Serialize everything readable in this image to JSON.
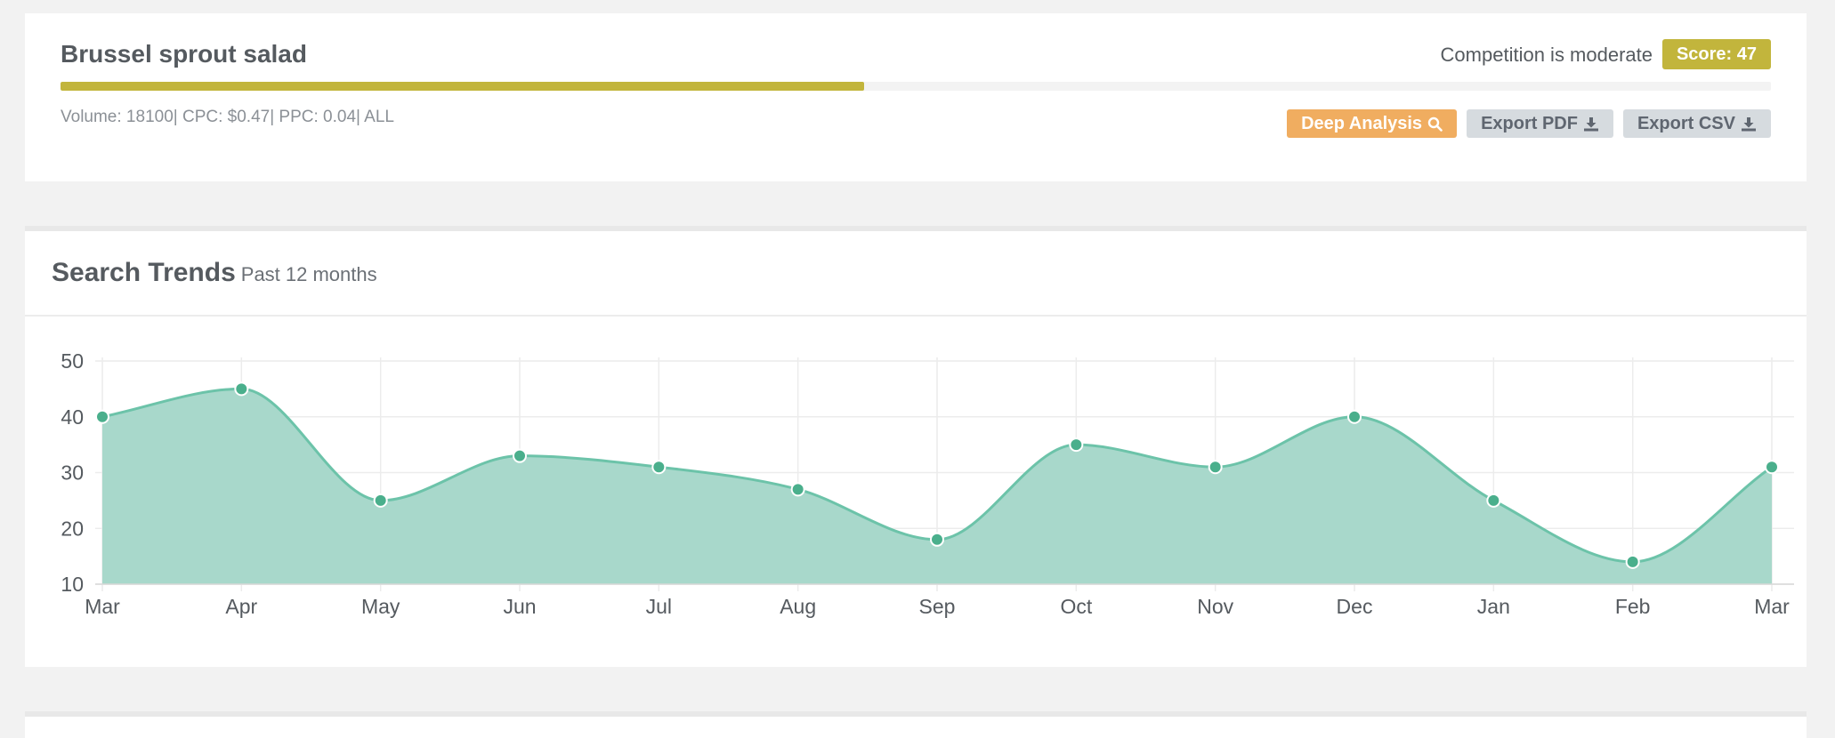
{
  "keyword": {
    "title": "Brussel sprout salad",
    "competition_text": "Competition is moderate",
    "score_label": "Score: 47",
    "score": 47,
    "score_color": "#c2b53c",
    "metrics_text": "Volume: 18100| CPC: $0.47| PPC: 0.04| ALL"
  },
  "actions": {
    "deep_analysis": "Deep Analysis",
    "deep_analysis_icon": "search-icon",
    "export_pdf": "Export PDF",
    "export_csv": "Export CSV",
    "download_icon": "download-icon",
    "deep_analysis_color": "#f0ad60"
  },
  "trends": {
    "title": "Search Trends",
    "subtitle": "Past 12 months"
  },
  "chart_data": {
    "type": "area",
    "categories": [
      "Mar",
      "Apr",
      "May",
      "Jun",
      "Jul",
      "Aug",
      "Sep",
      "Oct",
      "Nov",
      "Dec",
      "Jan",
      "Feb",
      "Mar"
    ],
    "values": [
      40,
      45,
      25,
      33,
      31,
      27,
      18,
      35,
      31,
      40,
      25,
      14,
      31
    ],
    "yticks": [
      10,
      20,
      30,
      40,
      50
    ],
    "ylim": [
      10,
      50
    ],
    "grid": true,
    "fill_color": "#a8d8cb",
    "line_color": "#6cc3a9",
    "point_color": "#4aaf8c"
  }
}
